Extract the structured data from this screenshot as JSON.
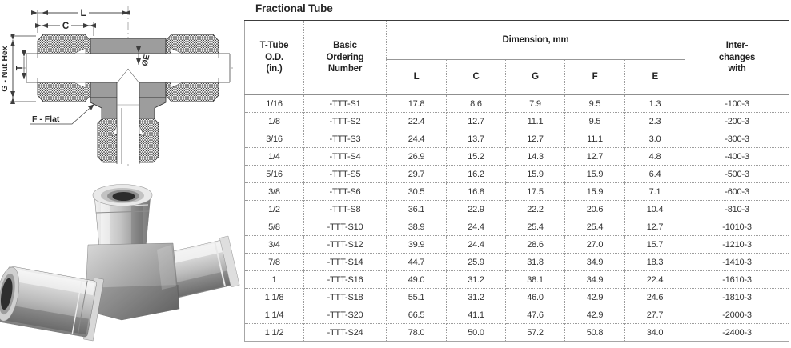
{
  "diagram": {
    "dim_l": "L",
    "dim_c": "C",
    "dim_g": "G - Nut Hex",
    "dim_t": "T",
    "dim_e": "ØE",
    "dim_f": "F - Flat"
  },
  "table": {
    "title": "Fractional Tube",
    "headers": {
      "od": "T-Tube\nO.D.\n(in.)",
      "ordering": "Basic\nOrdering\nNumber",
      "dimension": "Dimension, mm",
      "dims": [
        "L",
        "C",
        "G",
        "F",
        "E"
      ],
      "interchanges": "Inter-\nchanges\nwith"
    },
    "rows": [
      [
        "1/16",
        "-TTT-S1",
        "17.8",
        "8.6",
        "7.9",
        "9.5",
        "1.3",
        "-100-3"
      ],
      [
        "1/8",
        "-TTT-S2",
        "22.4",
        "12.7",
        "11.1",
        "9.5",
        "2.3",
        "-200-3"
      ],
      [
        "3/16",
        "-TTT-S3",
        "24.4",
        "13.7",
        "12.7",
        "11.1",
        "3.0",
        "-300-3"
      ],
      [
        "1/4",
        "-TTT-S4",
        "26.9",
        "15.2",
        "14.3",
        "12.7",
        "4.8",
        "-400-3"
      ],
      [
        "5/16",
        "-TTT-S5",
        "29.7",
        "16.2",
        "15.9",
        "15.9",
        "6.4",
        "-500-3"
      ],
      [
        "3/8",
        "-TTT-S6",
        "30.5",
        "16.8",
        "17.5",
        "15.9",
        "7.1",
        "-600-3"
      ],
      [
        "1/2",
        "-TTT-S8",
        "36.1",
        "22.9",
        "22.2",
        "20.6",
        "10.4",
        "-810-3"
      ],
      [
        "5/8",
        "-TTT-S10",
        "38.9",
        "24.4",
        "25.4",
        "25.4",
        "12.7",
        "-1010-3"
      ],
      [
        "3/4",
        "-TTT-S12",
        "39.9",
        "24.4",
        "28.6",
        "27.0",
        "15.7",
        "-1210-3"
      ],
      [
        "7/8",
        "-TTT-S14",
        "44.7",
        "25.9",
        "31.8",
        "34.9",
        "18.3",
        "-1410-3"
      ],
      [
        "1",
        "-TTT-S16",
        "49.0",
        "31.2",
        "38.1",
        "34.9",
        "22.4",
        "-1610-3"
      ],
      [
        "1 1/8",
        "-TTT-S18",
        "55.1",
        "31.2",
        "46.0",
        "42.9",
        "24.6",
        "-1810-3"
      ],
      [
        "1 1/4",
        "-TTT-S20",
        "66.5",
        "41.1",
        "47.6",
        "42.9",
        "27.7",
        "-2000-3"
      ],
      [
        "1 1/2",
        "-TTT-S24",
        "78.0",
        "50.0",
        "57.2",
        "50.8",
        "34.0",
        "-2400-3"
      ]
    ]
  }
}
